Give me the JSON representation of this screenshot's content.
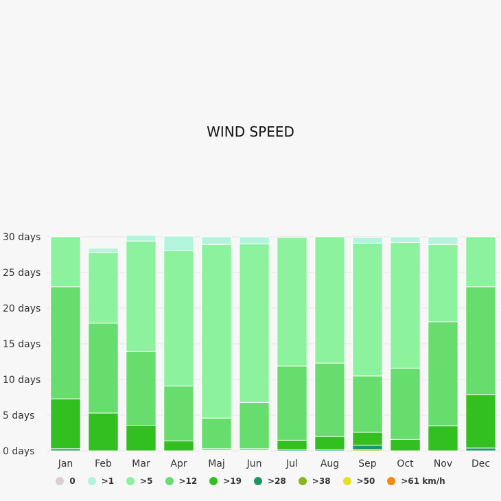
{
  "title": "WIND SPEED",
  "chart_data": {
    "type": "bar",
    "stacked": true,
    "title": "WIND SPEED",
    "ylim": [
      0,
      30
    ],
    "yticks": [
      0,
      5,
      10,
      15,
      20,
      25,
      30
    ],
    "yunit": " days",
    "grid": true,
    "legend_position": "bottom",
    "categories": [
      "Jan",
      "Feb",
      "Mar",
      "Apr",
      "Maj",
      "Jun",
      "Jul",
      "Aug",
      "Sep",
      "Oct",
      "Nov",
      "Dec"
    ],
    "series": [
      {
        "name": "0",
        "color": "#d8d0d0",
        "values": [
          0,
          0,
          0,
          0,
          0,
          0,
          0,
          0,
          0,
          0,
          0,
          0
        ]
      },
      {
        "name": ">1",
        "color": "#b3f5dc",
        "values": [
          0,
          0.6,
          0.8,
          2.0,
          1.1,
          1.0,
          0,
          0,
          0.8,
          0.8,
          1.1,
          0
        ]
      },
      {
        "name": ">5",
        "color": "#8cf29e",
        "values": [
          7.0,
          9.9,
          15.5,
          19.0,
          24.3,
          22.2,
          18.0,
          17.7,
          18.6,
          17.6,
          10.8,
          7.0
        ]
      },
      {
        "name": ">12",
        "color": "#66dd6c",
        "values": [
          15.7,
          12.6,
          10.3,
          7.7,
          4.3,
          6.5,
          10.4,
          10.3,
          7.9,
          10.0,
          14.6,
          15.1
        ]
      },
      {
        "name": ">19",
        "color": "#32bf20",
        "values": [
          7.0,
          5.3,
          3.6,
          1.4,
          0.2,
          0.2,
          1.3,
          1.8,
          1.8,
          1.6,
          3.5,
          7.5
        ]
      },
      {
        "name": ">28",
        "color": "#1a9960",
        "values": [
          0.3,
          0,
          0,
          0,
          0.1,
          0.1,
          0.2,
          0.2,
          0.6,
          0,
          0,
          0.4
        ]
      },
      {
        "name": ">38",
        "color": "#86b81c",
        "values": [
          0,
          0,
          0,
          0,
          0,
          0,
          0,
          0,
          0.2,
          0,
          0,
          0
        ]
      },
      {
        "name": ">50",
        "color": "#e8e020",
        "values": [
          0,
          0,
          0,
          0,
          0,
          0,
          0,
          0,
          0,
          0,
          0,
          0
        ]
      },
      {
        "name": ">61 km/h",
        "color": "#f08c10",
        "values": [
          0,
          0,
          0,
          0,
          0,
          0,
          0,
          0,
          0,
          0,
          0,
          0
        ]
      }
    ]
  }
}
